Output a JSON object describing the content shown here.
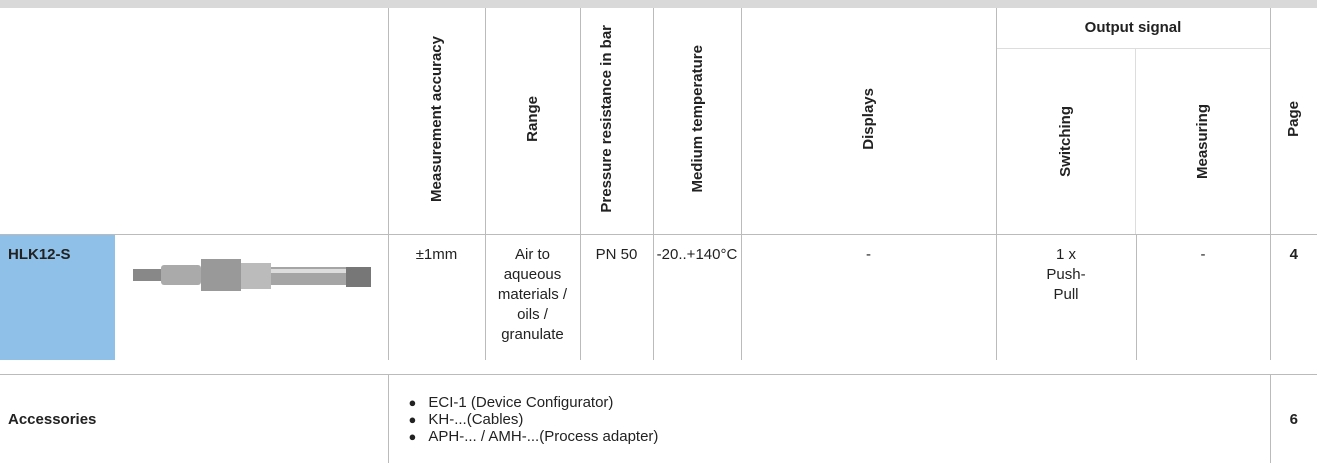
{
  "header": {
    "columns": [
      "Measurement accuracy",
      "Range",
      "Pressure resistance in bar",
      "Medium temperature",
      "Displays"
    ],
    "output_signal": {
      "title": "Output signal",
      "sub": [
        "Switching",
        "Measuring"
      ]
    },
    "page": "Page"
  },
  "product": {
    "name": "HLK12-S",
    "cells": [
      "±1mm",
      "Air to aqueous materials / oils / granulate",
      "PN 50",
      "-20..+140°C",
      "-",
      "1 x Push-Pull",
      "-",
      "4"
    ]
  },
  "accessories": {
    "label": "Accessories",
    "items": [
      "ECI-1 (Device Configurator)",
      "KH-...(Cables)",
      "APH-... / AMH-...(Process adapter)"
    ],
    "page": "6"
  }
}
